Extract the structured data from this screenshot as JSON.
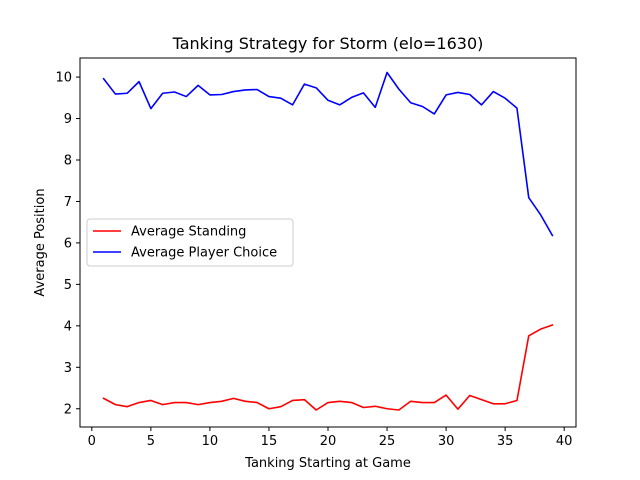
{
  "chart_data": {
    "type": "line",
    "title": "Tanking Strategy for Storm (elo=1630)",
    "xlabel": "Tanking Starting at Game",
    "ylabel": "Average Position",
    "xlim": [
      -1,
      41
    ],
    "ylim": [
      1.56,
      10.46
    ],
    "xticks": [
      0,
      5,
      10,
      15,
      20,
      25,
      30,
      35,
      40
    ],
    "yticks": [
      2,
      3,
      4,
      5,
      6,
      7,
      8,
      9,
      10
    ],
    "grid": false,
    "legend_position": "center-left",
    "x": [
      1,
      2,
      3,
      4,
      5,
      6,
      7,
      8,
      9,
      10,
      11,
      12,
      13,
      14,
      15,
      16,
      17,
      18,
      19,
      20,
      21,
      22,
      23,
      24,
      25,
      26,
      27,
      28,
      29,
      30,
      31,
      32,
      33,
      34,
      35,
      36,
      37,
      38,
      39
    ],
    "series": [
      {
        "name": "Average Standing",
        "color": "#ff0000",
        "values": [
          2.25,
          2.1,
          2.05,
          2.15,
          2.2,
          2.1,
          2.15,
          2.15,
          2.1,
          2.15,
          2.18,
          2.25,
          2.18,
          2.15,
          2.0,
          2.05,
          2.2,
          2.22,
          1.97,
          2.15,
          2.18,
          2.15,
          2.03,
          2.06,
          2.0,
          1.97,
          2.18,
          2.15,
          2.15,
          2.33,
          1.99,
          2.32,
          2.22,
          2.12,
          2.12,
          2.2,
          3.76,
          3.92,
          4.02
        ]
      },
      {
        "name": "Average Player Choice",
        "color": "#0000ff",
        "values": [
          9.96,
          9.59,
          9.61,
          9.89,
          9.24,
          9.61,
          9.64,
          9.53,
          9.8,
          9.57,
          9.58,
          9.65,
          9.69,
          9.7,
          9.53,
          9.49,
          9.33,
          9.83,
          9.74,
          9.44,
          9.33,
          9.51,
          9.62,
          9.27,
          10.11,
          9.71,
          9.38,
          9.29,
          9.11,
          9.57,
          9.63,
          9.58,
          9.33,
          9.65,
          9.49,
          9.25,
          7.09,
          6.68,
          6.18
        ]
      }
    ]
  }
}
